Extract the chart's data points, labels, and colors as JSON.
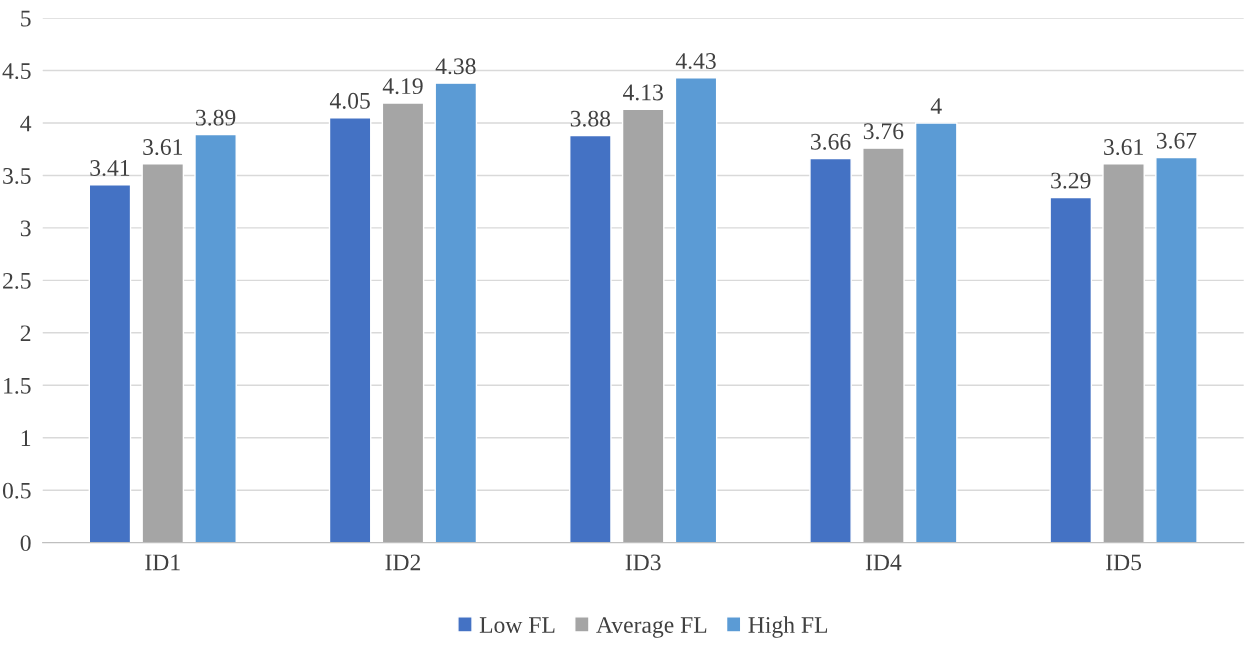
{
  "chart_data": {
    "type": "bar",
    "categories": [
      "ID1",
      "ID2",
      "ID3",
      "ID4",
      "ID5"
    ],
    "series": [
      {
        "name": "Low FL",
        "color": "#4472c4",
        "values": [
          3.41,
          4.05,
          3.88,
          3.66,
          3.29
        ]
      },
      {
        "name": "Average FL",
        "color": "#a5a5a5",
        "values": [
          3.61,
          4.19,
          4.13,
          3.76,
          3.61
        ]
      },
      {
        "name": "High FL",
        "color": "#5b9bd5",
        "values": [
          3.89,
          4.38,
          4.43,
          4,
          3.67
        ]
      }
    ],
    "ylim": [
      0,
      5
    ],
    "yticks": [
      0,
      0.5,
      1,
      1.5,
      2,
      2.5,
      3,
      3.5,
      4,
      4.5,
      5
    ],
    "grid": "y",
    "legend": "bottom",
    "data_labels": true
  }
}
